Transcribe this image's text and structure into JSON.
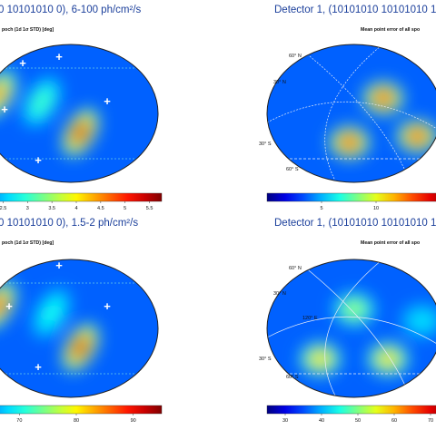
{
  "chart_data": [
    {
      "type": "heatmap",
      "projection": "aitoff-hammer",
      "title": "0 10101010 0), 6-100 ph/cm²/s",
      "subtitle": "poch (1d 1σ STD) [deg]",
      "colormap": "jet",
      "colorbar_ticks": [
        "2.5",
        "3",
        "3.5",
        "4",
        "4.5",
        "5",
        "5.5"
      ],
      "annotations": [
        "+",
        "+",
        "+",
        "+",
        "+"
      ],
      "hotspots": [
        {
          "lon": -150,
          "lat": 25,
          "level": 0.78
        },
        {
          "lon": 20,
          "lat": -25,
          "level": 0.95
        },
        {
          "lon": -60,
          "lat": 15,
          "level": 0.45
        }
      ]
    },
    {
      "type": "heatmap",
      "projection": "aitoff-hammer",
      "title": "Detector 1, (10101010 10101010 1",
      "subtitle": "Mean point error of all spo",
      "colormap": "jet",
      "colorbar_ticks": [
        "5",
        "10"
      ],
      "grid_labels": [
        "60° N",
        "30° N",
        "30° S",
        "60° S"
      ],
      "hotspots": [
        {
          "lon": 60,
          "lat": 20,
          "level": 0.9
        },
        {
          "lon": -10,
          "lat": -38,
          "level": 0.9
        },
        {
          "lon": 130,
          "lat": -30,
          "level": 0.9
        }
      ]
    },
    {
      "type": "heatmap",
      "projection": "aitoff-hammer",
      "title": "0 10101010 0), 1.5-2 ph/cm²/s",
      "subtitle": "poch (1d 1σ STD) [deg]",
      "colormap": "jet",
      "colorbar_ticks": [
        "70",
        "80",
        "90"
      ],
      "annotations": [
        "+",
        "+",
        "+",
        "+"
      ],
      "hotspots": [
        {
          "lon": -150,
          "lat": 30,
          "level": 0.85
        },
        {
          "lon": 20,
          "lat": -25,
          "level": 0.95
        },
        {
          "lon": -40,
          "lat": 20,
          "level": 0.4
        }
      ]
    },
    {
      "type": "heatmap",
      "projection": "aitoff-hammer",
      "title": "Detector 1, (10101010 10101010 1",
      "subtitle": "Mean point error of all spo",
      "colormap": "jet",
      "colorbar_ticks": [
        "30",
        "40",
        "50",
        "60",
        "70"
      ],
      "grid_labels": [
        "60° N",
        "30° N",
        "120° E",
        "30° S",
        "60° S"
      ],
      "hotspots": [
        {
          "lon": 0,
          "lat": 25,
          "level": 0.55
        },
        {
          "lon": -70,
          "lat": -40,
          "level": 0.7
        },
        {
          "lon": 70,
          "lat": -40,
          "level": 0.7
        },
        {
          "lon": 140,
          "lat": 10,
          "level": 0.35
        }
      ]
    }
  ]
}
